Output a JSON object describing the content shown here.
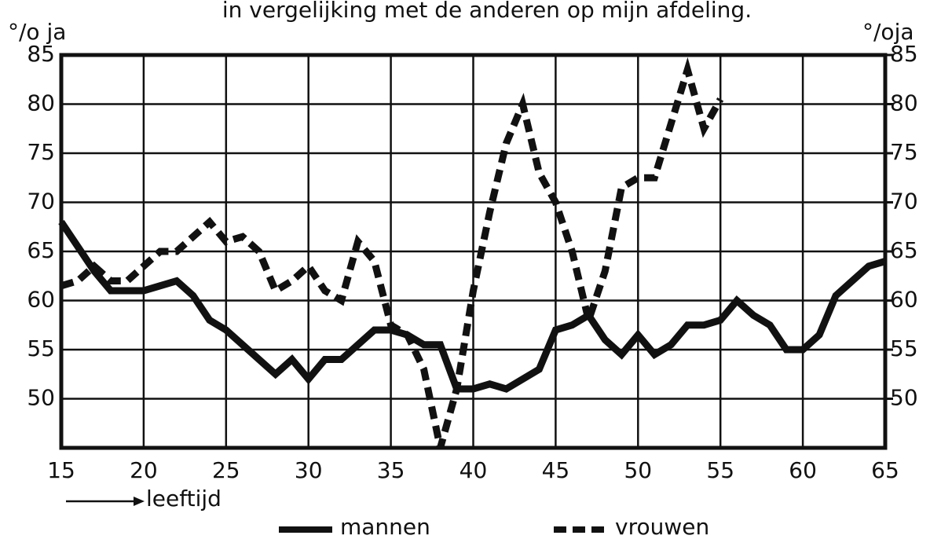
{
  "chart_data": {
    "type": "line",
    "title": "in vergelijking met de anderen op mijn afdeling.",
    "y_label": "°/o ja",
    "y2_label": "°/oja",
    "x_label": "leeftijd",
    "x": [
      15,
      16,
      17,
      18,
      19,
      20,
      21,
      22,
      23,
      24,
      25,
      26,
      27,
      28,
      29,
      30,
      31,
      32,
      33,
      34,
      35,
      36,
      37,
      38,
      39,
      40,
      41,
      42,
      43,
      44,
      45,
      46,
      47,
      48,
      49,
      50,
      51,
      52,
      53,
      54,
      55,
      56,
      57,
      58,
      59,
      60,
      61,
      62,
      63,
      64,
      65
    ],
    "series": [
      {
        "name": "mannen",
        "color": "#111111",
        "style": "solid",
        "values": [
          68,
          65.5,
          63,
          61,
          61,
          61,
          61.5,
          62,
          60.5,
          58,
          57,
          55.5,
          54,
          52.5,
          54,
          52,
          54,
          54,
          55.5,
          57,
          57,
          56.5,
          55.5,
          55.5,
          51,
          51,
          51.5,
          51,
          52,
          53,
          57,
          57.5,
          58.5,
          56,
          54.5,
          56.5,
          54.5,
          55.5,
          57.5,
          57.5,
          58,
          60,
          58.5,
          57.5,
          55,
          55,
          56.5,
          60.5,
          62,
          63.5,
          64
        ]
      },
      {
        "name": "vrouwen",
        "color": "#111111",
        "style": "dashed",
        "values": [
          61.5,
          62,
          63.5,
          62,
          62,
          63.5,
          65,
          65,
          66.5,
          68,
          66,
          66.5,
          65,
          61,
          62,
          63.5,
          61,
          60,
          66,
          64,
          57.5,
          56.5,
          53,
          45,
          51,
          61,
          69,
          76,
          80,
          73,
          70,
          65,
          58,
          63,
          71.5,
          72.5,
          72.5,
          78,
          83.5,
          77.5,
          80.5,
          null,
          null,
          null,
          null,
          null,
          null,
          null,
          null,
          null,
          null
        ]
      }
    ],
    "xlim": [
      15,
      65
    ],
    "xticks": [
      15,
      20,
      25,
      30,
      35,
      40,
      45,
      50,
      55,
      60,
      65
    ],
    "ylim": [
      45,
      85
    ],
    "yticks": [
      50,
      55,
      60,
      65,
      70,
      75,
      80,
      85
    ],
    "y2lim": [
      45,
      85
    ],
    "y2ticks": [
      50,
      55,
      60,
      65,
      70,
      75,
      80,
      85
    ],
    "grid": true
  }
}
